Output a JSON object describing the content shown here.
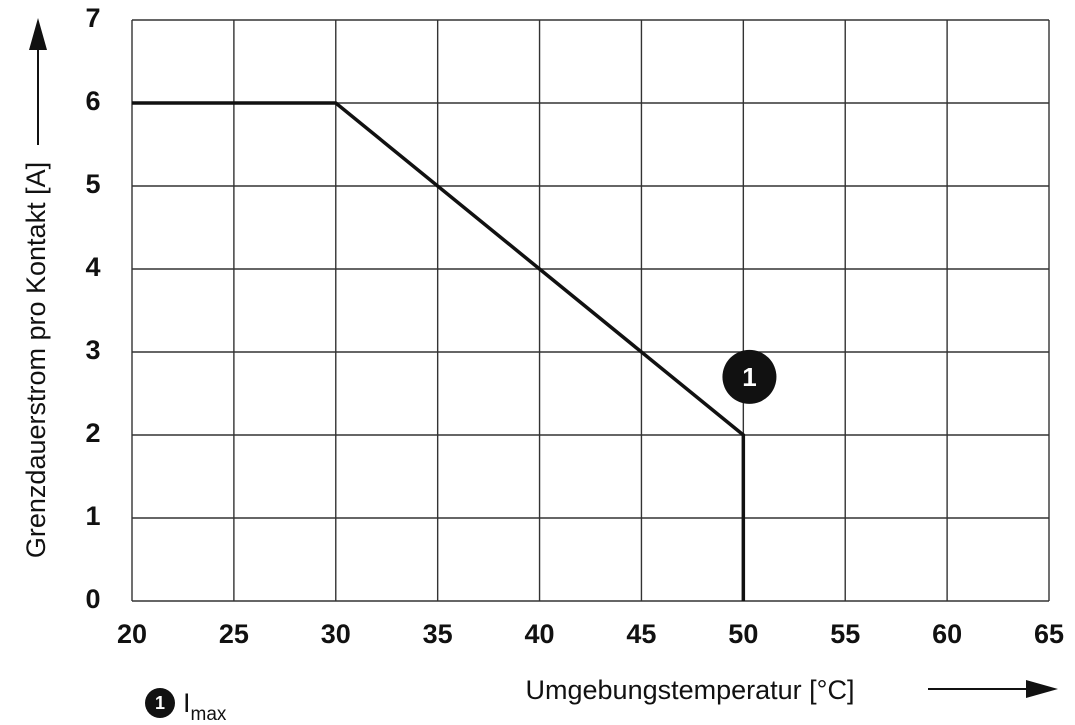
{
  "chart_data": {
    "type": "line",
    "xlabel": "Umgebungstemperatur [°C]",
    "ylabel": "Grenzdauerstrom pro Kontakt [A]",
    "xlim": [
      20,
      65
    ],
    "ylim": [
      0,
      7
    ],
    "x_ticks": [
      "20",
      "25",
      "30",
      "35",
      "40",
      "45",
      "50",
      "55",
      "60",
      "65"
    ],
    "y_ticks": [
      "0",
      "1",
      "2",
      "3",
      "4",
      "5",
      "6",
      "7"
    ],
    "grid": true,
    "series": [
      {
        "points": [
          {
            "x": 20,
            "y": 6
          },
          {
            "x": 30,
            "y": 6
          },
          {
            "x": 50,
            "y": 2
          },
          {
            "x": 50,
            "y": 0
          }
        ]
      }
    ],
    "annotations": [
      {
        "label": "1",
        "x": 50.3,
        "y": 2.7
      }
    ],
    "legend": {
      "marker": "1",
      "text": "I",
      "subscript": "max",
      "placement": "bottom-left"
    }
  }
}
